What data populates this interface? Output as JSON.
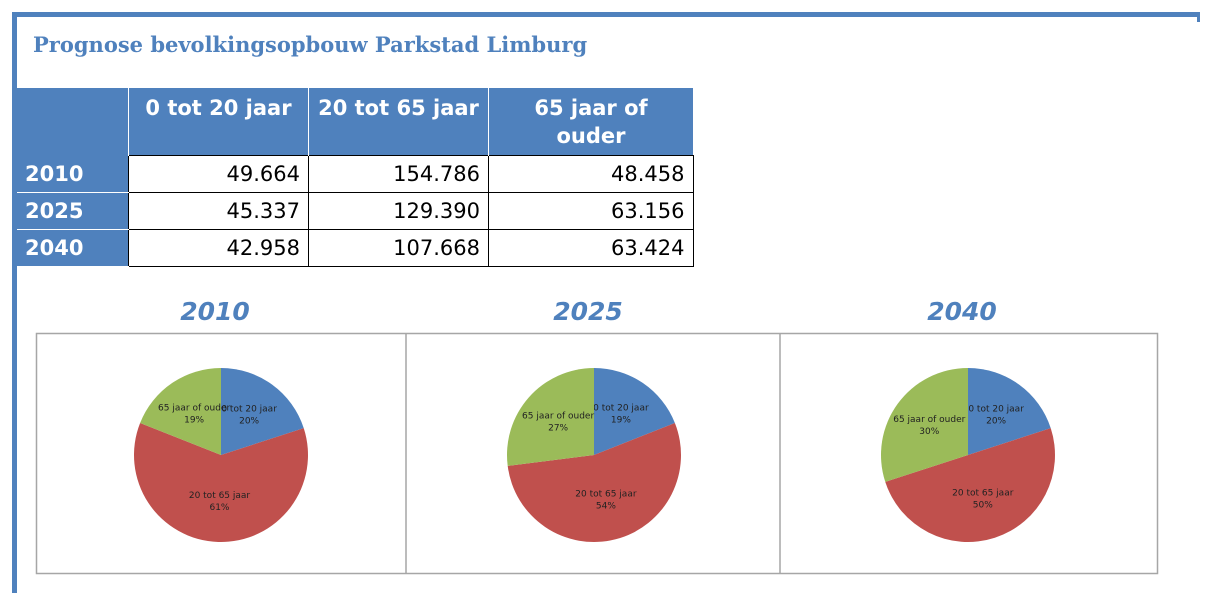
{
  "title": "Prognose bevolkingsopbouw Parkstad Limburg",
  "table": {
    "header": [
      "0 tot 20 jaar",
      "20 tot 65 jaar",
      "65 jaar of ouder"
    ],
    "rows": [
      {
        "label": "2010",
        "cells": [
          "49.664",
          "154.786",
          "48.458"
        ]
      },
      {
        "label": "2025",
        "cells": [
          "45.337",
          "129.390",
          "63.156"
        ]
      },
      {
        "label": "2040",
        "cells": [
          "42.958",
          "107.668",
          "63.424"
        ]
      }
    ]
  },
  "chart_data": [
    {
      "type": "pie",
      "title": "2010",
      "categories": [
        "0 tot 20 jaar",
        "20 tot 65 jaar",
        "65 jaar of ouder"
      ],
      "values": [
        20,
        61,
        19
      ],
      "value_labels": [
        "20%",
        "61%",
        "19%"
      ],
      "colors": [
        "#4f81bd",
        "#c0504d",
        "#9bbb59"
      ]
    },
    {
      "type": "pie",
      "title": "2025",
      "categories": [
        "0 tot 20 jaar",
        "20 tot 65 jaar",
        "65 jaar of ouder"
      ],
      "values": [
        19,
        54,
        27
      ],
      "value_labels": [
        "19%",
        "54%",
        "27%"
      ],
      "colors": [
        "#4f81bd",
        "#c0504d",
        "#9bbb59"
      ]
    },
    {
      "type": "pie",
      "title": "2040",
      "categories": [
        "0 tot 20 jaar",
        "20 tot 65 jaar",
        "65 jaar of ouder"
      ],
      "values": [
        20,
        50,
        30
      ],
      "value_labels": [
        "20%",
        "50%",
        "30%"
      ],
      "colors": [
        "#4f81bd",
        "#c0504d",
        "#9bbb59"
      ]
    }
  ]
}
